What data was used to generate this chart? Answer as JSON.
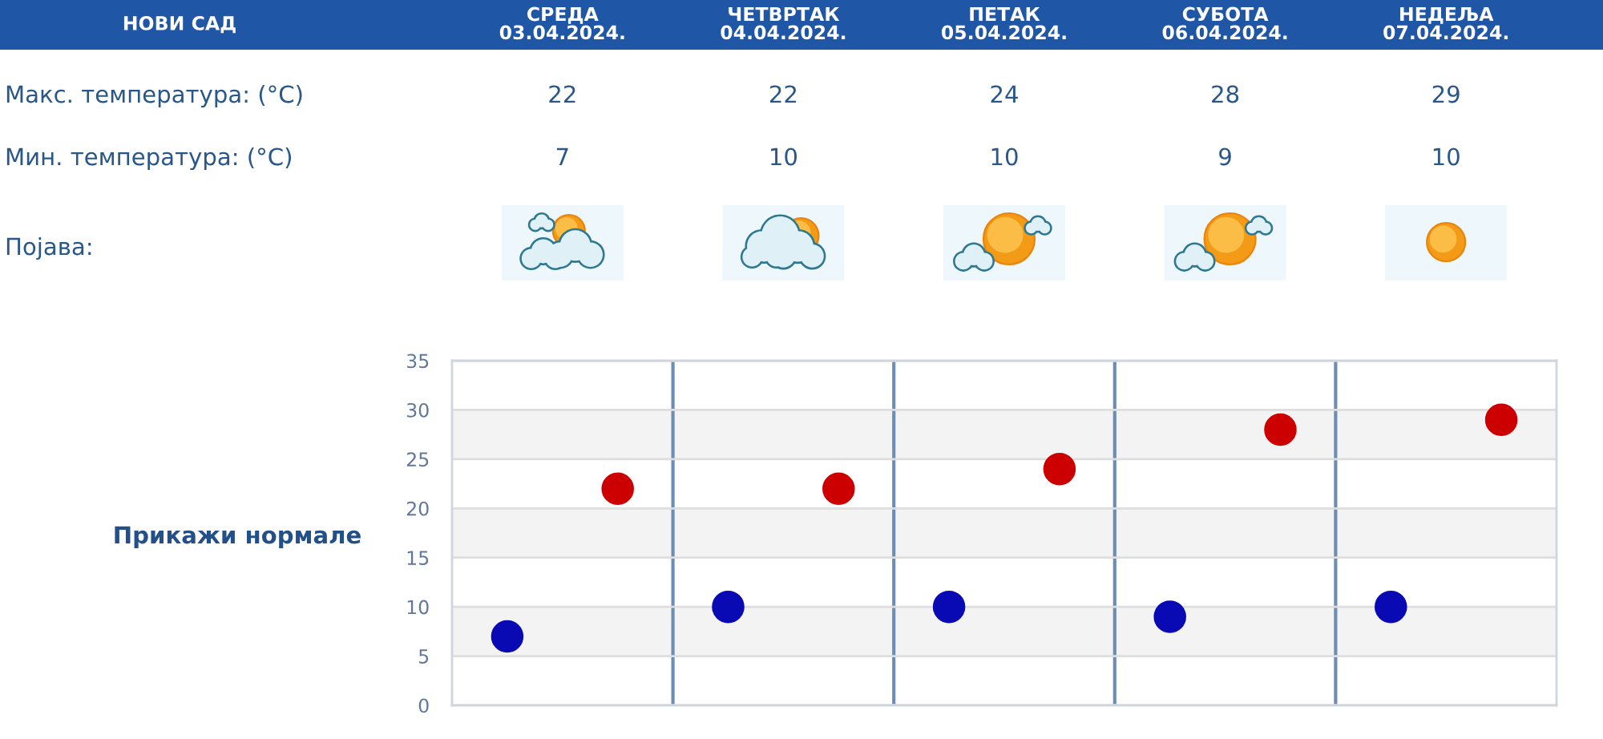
{
  "chart_data": {
    "type": "scatter",
    "title": "НОВИ САД",
    "categories": [
      null,
      null,
      null,
      null,
      null
    ],
    "series": [
      {
        "color": "#cc0000",
        "values": [
          22,
          22,
          24,
          28,
          29
        ]
      },
      {
        "color": "#0a0ab4",
        "values": [
          7,
          10,
          10,
          9,
          10
        ]
      }
    ],
    "ylim": [
      0,
      35
    ],
    "yticks": [
      0,
      5,
      10,
      15,
      20,
      25,
      30,
      35
    ],
    "grid": true,
    "bands": [
      {
        "axis": "y",
        "from": 5,
        "to": 10,
        "color": "#f3f3f3"
      },
      {
        "axis": "y",
        "from": 15,
        "to": 20,
        "color": "#f3f3f3"
      },
      {
        "axis": "y",
        "from": 25,
        "to": 30,
        "color": "#f3f3f3"
      }
    ],
    "marker": "circle",
    "data_labels": true,
    "annotations": [
      "СРЕДА\n03.04.2024.",
      "ЧЕТВРТАК\n04.04.2024.",
      "ПЕТАК\n05.04.2024.",
      "СУБОТА\n06.04.2024.",
      "НЕДЕЉА\n07.04.2024.",
      "Макс. температура: (°C)",
      "Мин. температура: (°C)",
      "Појава:",
      "Прикажи нормале"
    ]
  }
}
